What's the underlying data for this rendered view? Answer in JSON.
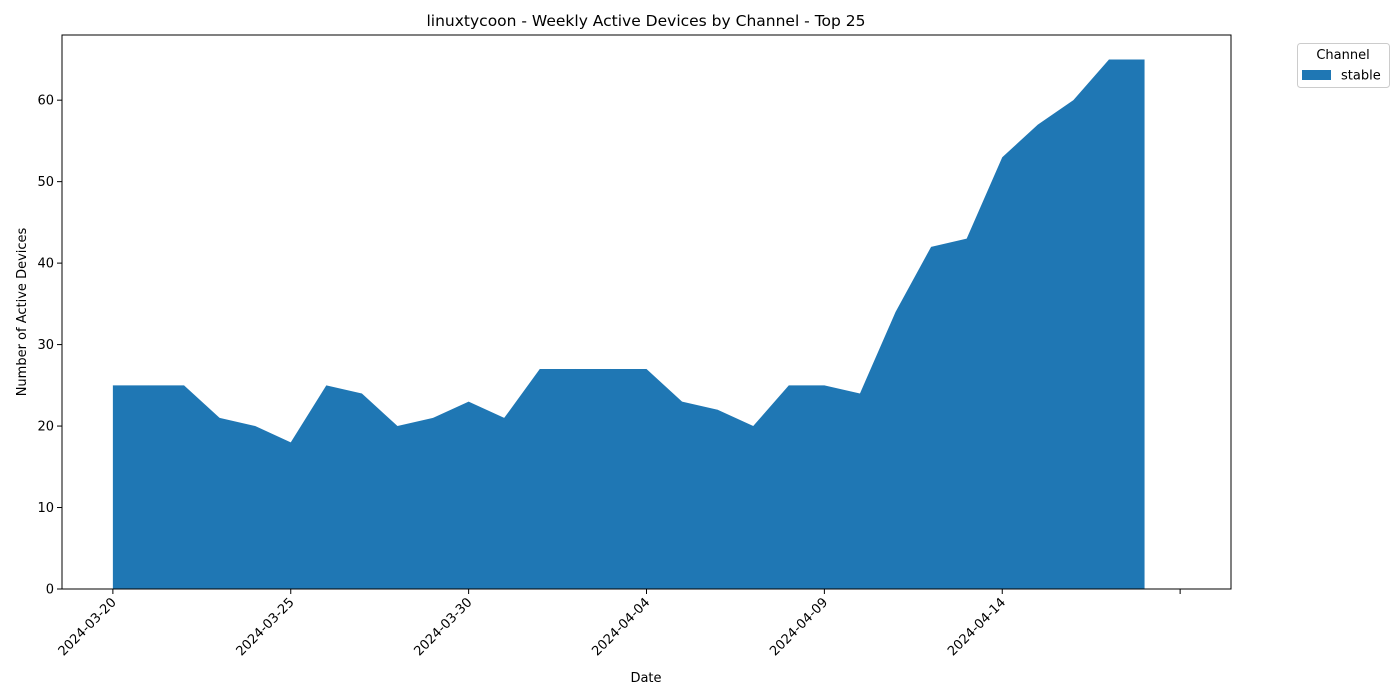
{
  "chart_data": {
    "type": "area",
    "title": "linuxtycoon - Weekly Active Devices by Channel - Top 25",
    "xlabel": "Date",
    "ylabel": "Number of Active Devices",
    "ylim": [
      0,
      68
    ],
    "xlim": [
      "2024-03-18.57",
      "2024-04-20.43"
    ],
    "y_ticks": [
      0,
      10,
      20,
      30,
      40,
      50,
      60
    ],
    "x_ticks": [
      "2024-03-20",
      "2024-03-25",
      "2024-03-30",
      "2024-04-04",
      "2024-04-09",
      "2024-04-14"
    ],
    "extra_x_tick": "2024-04-19",
    "legend_title": "Channel",
    "legend_position": "outside top-right",
    "series": [
      {
        "name": "stable",
        "color": "#1f77b4",
        "x": [
          "2024-03-20",
          "2024-03-21",
          "2024-03-22",
          "2024-03-23",
          "2024-03-24",
          "2024-03-25",
          "2024-03-26",
          "2024-03-27",
          "2024-03-28",
          "2024-03-29",
          "2024-03-30",
          "2024-03-31",
          "2024-04-01",
          "2024-04-02",
          "2024-04-03",
          "2024-04-04",
          "2024-04-05",
          "2024-04-06",
          "2024-04-07",
          "2024-04-08",
          "2024-04-09",
          "2024-04-10",
          "2024-04-11",
          "2024-04-12",
          "2024-04-13",
          "2024-04-14",
          "2024-04-15",
          "2024-04-16",
          "2024-04-17",
          "2024-04-18"
        ],
        "values": [
          25,
          25,
          25,
          21,
          20,
          18,
          25,
          24,
          20,
          21,
          23,
          21,
          27,
          27,
          27,
          27,
          23,
          22,
          20,
          25,
          25,
          24,
          34,
          42,
          43,
          53,
          57,
          60,
          65,
          65
        ]
      }
    ]
  }
}
